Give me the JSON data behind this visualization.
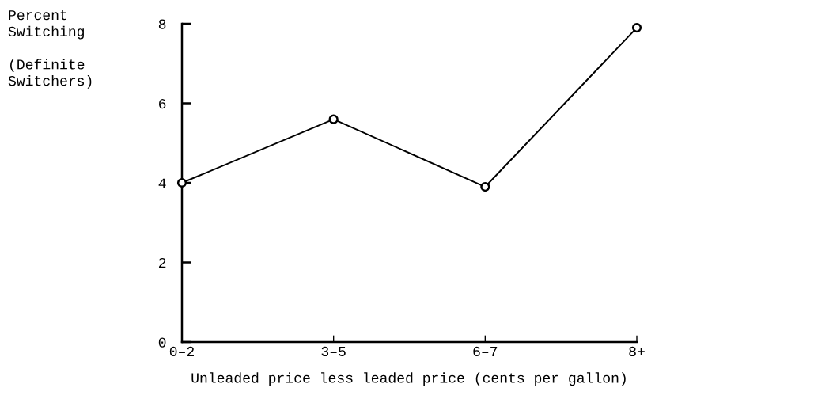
{
  "chart_data": {
    "type": "line",
    "ylabel": "Percent\nSwitching\n\n(Definite\nSwitchers)",
    "xlabel": "Unleaded price less leaded price (cents per gallon)",
    "categories": [
      "0–2",
      "3–5",
      "6–7",
      "8+"
    ],
    "series": [
      {
        "color": "#000000",
        "values": [
          4.0,
          5.6,
          3.9,
          7.9
        ]
      }
    ],
    "ylim": [
      0,
      8
    ],
    "yticks": [
      0,
      2,
      4,
      6,
      8
    ],
    "marker": "circle",
    "line_style": "solid",
    "grid": false,
    "legend": false
  }
}
